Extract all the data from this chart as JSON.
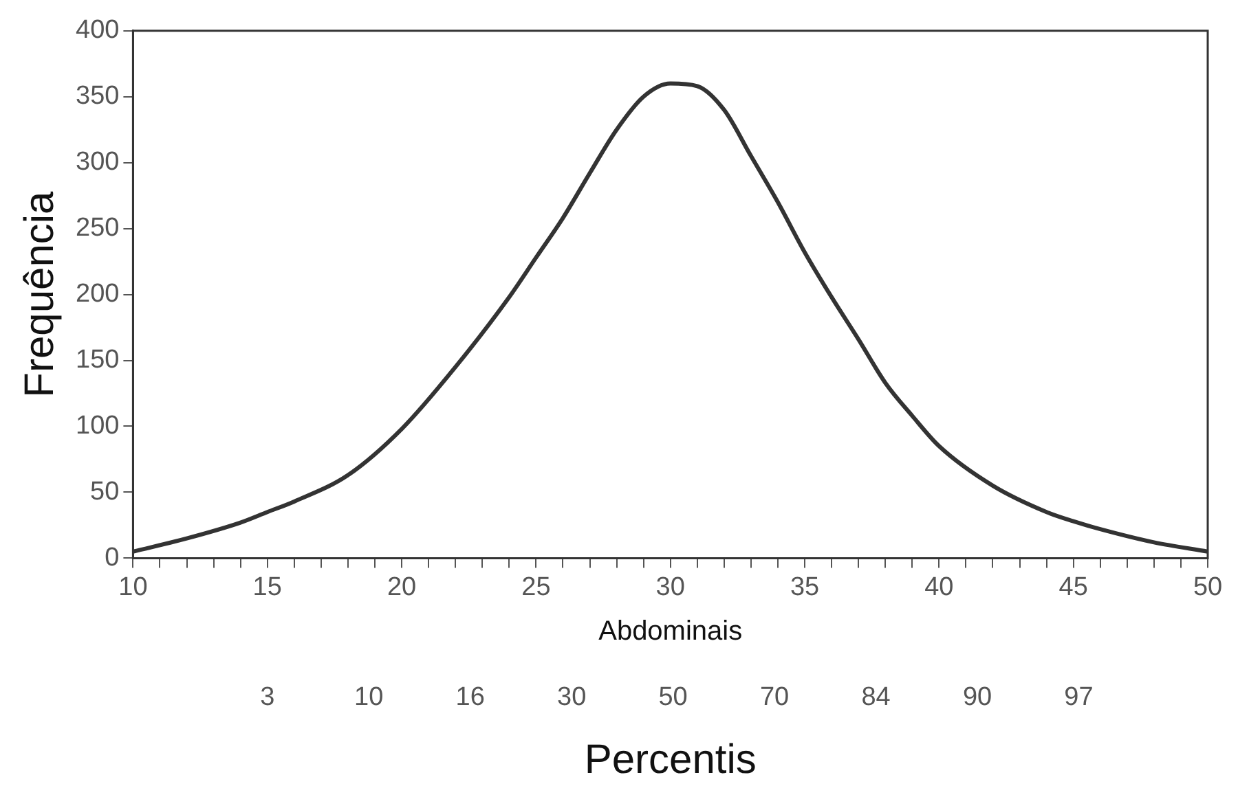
{
  "chart_data": {
    "type": "line",
    "xlabel": "Abdominais",
    "ylabel": "Frequência",
    "subtitle": "Percentis",
    "xlim": [
      10,
      50
    ],
    "ylim": [
      0,
      400
    ],
    "xticks": [
      10,
      {
        "value": 11,
        "label": null
      },
      {
        "value": 12,
        "label": null
      },
      {
        "value": 13,
        "label": null
      },
      {
        "value": 14,
        "label": null
      },
      15,
      {
        "value": 16,
        "label": null
      },
      {
        "value": 17,
        "label": null
      },
      {
        "value": 18,
        "label": null
      },
      {
        "value": 19,
        "label": null
      },
      20,
      {
        "value": 21,
        "label": null
      },
      {
        "value": 22,
        "label": null
      },
      {
        "value": 23,
        "label": null
      },
      {
        "value": 24,
        "label": null
      },
      25,
      {
        "value": 26,
        "label": null
      },
      {
        "value": 27,
        "label": null
      },
      {
        "value": 28,
        "label": null
      },
      {
        "value": 29,
        "label": null
      },
      30,
      {
        "value": 31,
        "label": null
      },
      {
        "value": 32,
        "label": null
      },
      {
        "value": 33,
        "label": null
      },
      {
        "value": 34,
        "label": null
      },
      35,
      {
        "value": 36,
        "label": null
      },
      {
        "value": 37,
        "label": null
      },
      {
        "value": 38,
        "label": null
      },
      {
        "value": 39,
        "label": null
      },
      40,
      {
        "value": 41,
        "label": null
      },
      {
        "value": 42,
        "label": null
      },
      {
        "value": 43,
        "label": null
      },
      {
        "value": 44,
        "label": null
      },
      45,
      {
        "value": 46,
        "label": null
      },
      {
        "value": 47,
        "label": null
      },
      {
        "value": 48,
        "label": null
      },
      {
        "value": 49,
        "label": null
      },
      50
    ],
    "yticks": [
      0,
      50,
      100,
      150,
      200,
      250,
      300,
      350,
      400
    ],
    "annotations": [
      "3",
      "10",
      "16",
      "30",
      "50",
      "70",
      "84",
      "90",
      "97"
    ],
    "grid": false,
    "legend": false,
    "marker": "none",
    "line_style": "solid",
    "series": [
      {
        "color": "#333333",
        "x": [
          10,
          12,
          14,
          15,
          16,
          18,
          20,
          22,
          24,
          25,
          26,
          27,
          28,
          29,
          30,
          31,
          32,
          33,
          34,
          35,
          36,
          37,
          38,
          39,
          40,
          42,
          44,
          45,
          46,
          48,
          50
        ],
        "values": [
          5,
          15,
          27,
          35,
          43,
          63,
          98,
          145,
          198,
          228,
          258,
          292,
          325,
          350,
          360,
          358,
          340,
          305,
          270,
          232,
          198,
          166,
          133,
          108,
          85,
          55,
          35,
          28,
          22,
          12,
          5
        ]
      }
    ]
  }
}
